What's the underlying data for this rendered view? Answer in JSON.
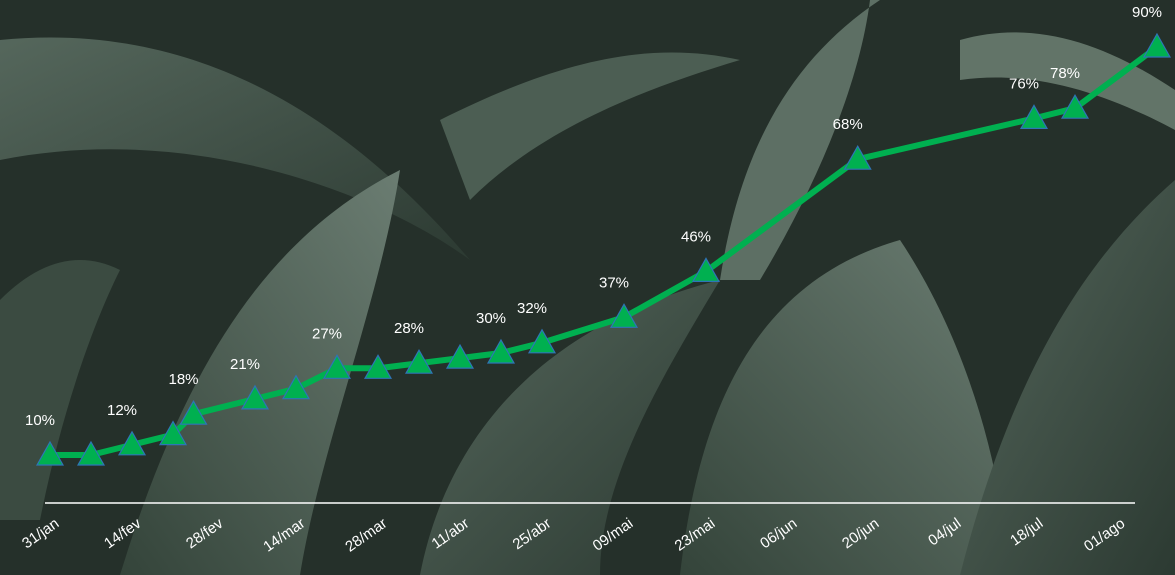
{
  "chart_data": {
    "type": "line",
    "xticks": [
      {
        "value": 0,
        "label": "31/jan"
      },
      {
        "value": 2,
        "label": "14/fev"
      },
      {
        "value": 4,
        "label": "28/fev"
      },
      {
        "value": 6,
        "label": "14/mar"
      },
      {
        "value": 8,
        "label": "28/mar"
      },
      {
        "value": 10,
        "label": "11/abr"
      },
      {
        "value": 12,
        "label": "25/abr"
      },
      {
        "value": 14,
        "label": "09/mai"
      },
      {
        "value": 16,
        "label": "23/mai"
      },
      {
        "value": 18,
        "label": "06/jun"
      },
      {
        "value": 20,
        "label": "20/jun"
      },
      {
        "value": 22,
        "label": "04/jul"
      },
      {
        "value": 24,
        "label": "18/jul"
      },
      {
        "value": 26,
        "label": "01/ago"
      }
    ],
    "xlim": [
      0,
      27
    ],
    "ylim": [
      0,
      100
    ],
    "x": [
      0,
      1,
      2,
      3,
      3.5,
      5,
      6,
      7,
      8,
      9,
      10,
      11,
      12,
      14,
      16,
      19.7,
      24,
      25,
      27
    ],
    "series": [
      {
        "color": "#00b050",
        "values": [
          10,
          10,
          12,
          14,
          18,
          21,
          23,
          27,
          27,
          28,
          29,
          30,
          32,
          37,
          46,
          68,
          76,
          78,
          90
        ],
        "value_labels": [
          "10%",
          null,
          "12%",
          null,
          "18%",
          "21%",
          null,
          "27%",
          null,
          "28%",
          null,
          "30%",
          "32%",
          "37%",
          "46%",
          "68%",
          "76%",
          "78%",
          "90%"
        ]
      }
    ]
  }
}
